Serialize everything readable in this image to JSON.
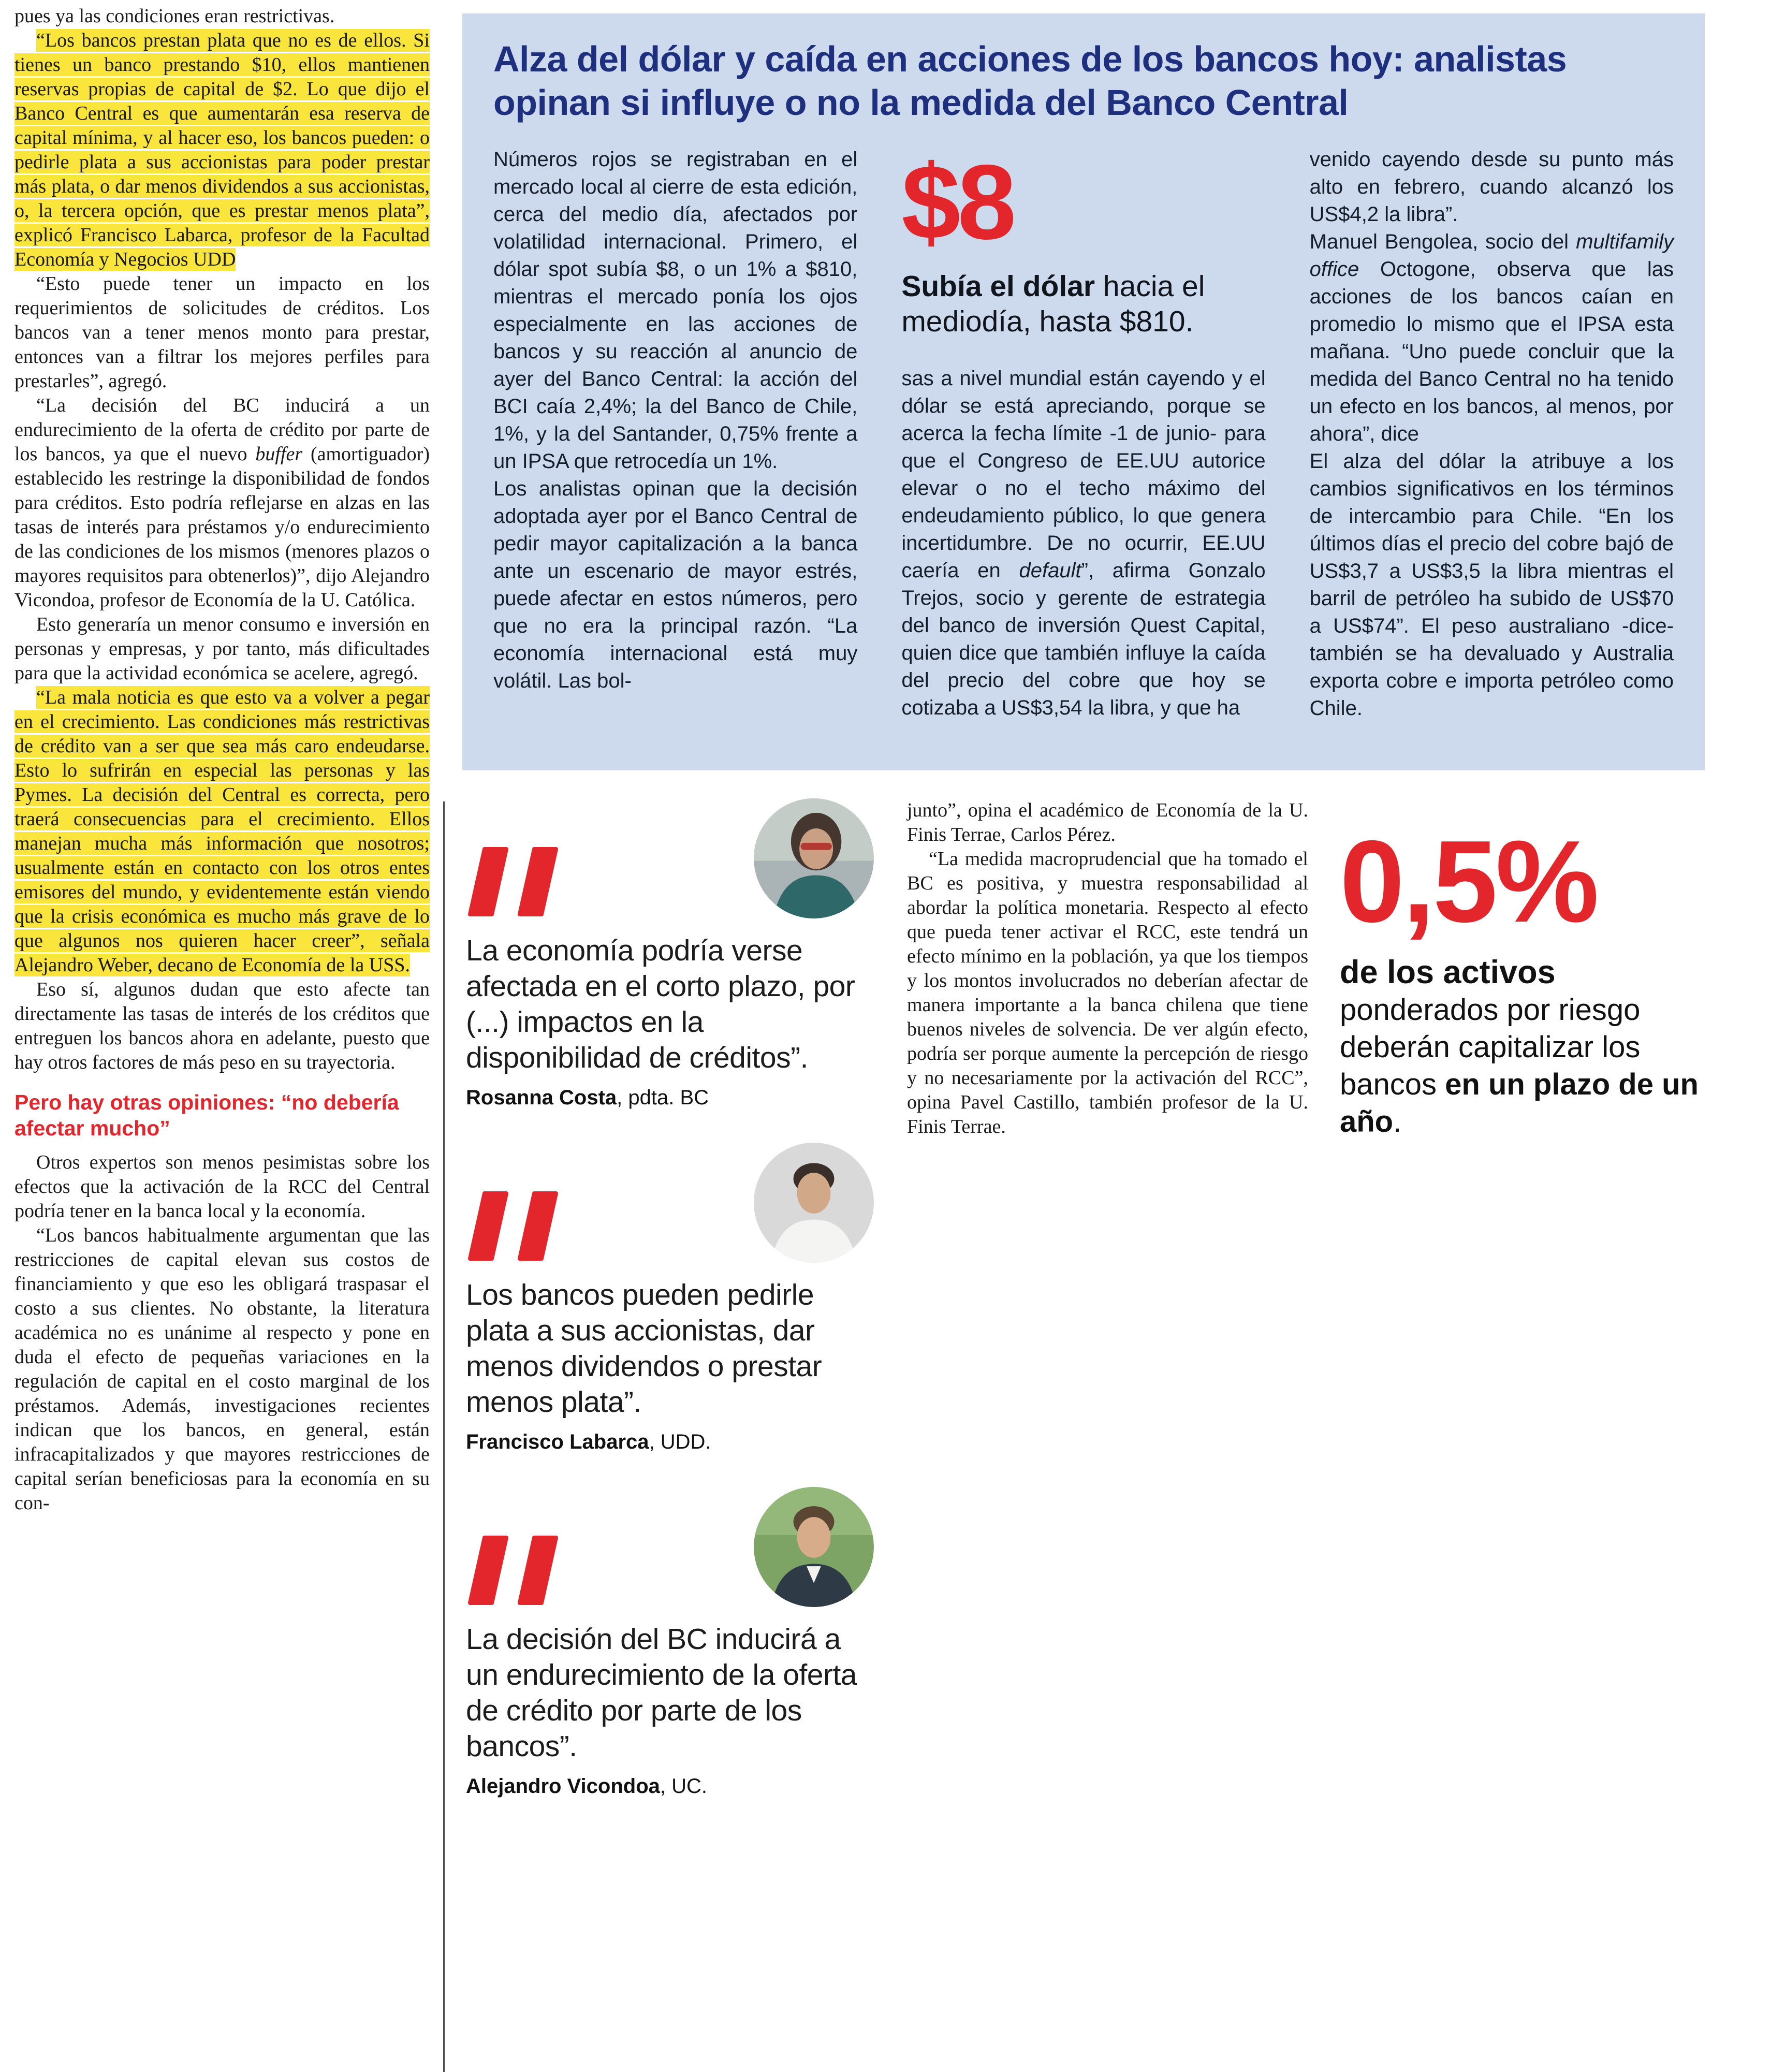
{
  "colors": {
    "accent_red": "#e2262c",
    "headline_navy": "#1e2f7e",
    "panel_blue": "#cdd9ed",
    "highlight_yellow": "#fae53c",
    "text_dark": "#1a1a1a"
  },
  "left_column": {
    "blocks": [
      {
        "seg": [
          {
            "t": "pues ya las condiciones eran restrictivas."
          }
        ]
      },
      {
        "indent": true,
        "seg": [
          {
            "h": true,
            "t": "“Los bancos prestan plata que no es de ellos. Si tienes un banco prestando $10, ellos mantienen reservas propias de capital de $2. Lo que dijo el Banco Central es que aumentarán esa reserva de capital mínima, y al hacer eso, los bancos pueden: o pedirle plata a sus accionistas para poder prestar más plata, o dar menos dividendos a sus accionistas, o, la tercera opción, que es prestar menos plata”, explicó Francisco Labarca, profesor de la Facultad Economía y Negocios UDD"
          }
        ]
      },
      {
        "indent": true,
        "seg": [
          {
            "t": "“Esto puede tener un impacto en los requerimientos de solicitudes de créditos. Los bancos van a tener menos monto para prestar, entonces van a filtrar los mejores perfiles para prestarles”, agregó."
          }
        ]
      },
      {
        "indent": true,
        "seg": [
          {
            "t": "“La decisión del BC inducirá a un endurecimiento de la oferta de crédito por parte de los bancos, ya que el nuevo "
          },
          {
            "i": true,
            "t": "buffer"
          },
          {
            "t": " (amortiguador) establecido les restringe la disponibilidad de fondos para créditos. Esto podría reflejarse en alzas en las tasas de interés para préstamos y/o endurecimiento de las condiciones de los mismos (menores plazos o mayores requisitos para obtenerlos)”, dijo Alejandro Vicondoa, profesor de Economía de la U. Católica."
          }
        ]
      },
      {
        "indent": true,
        "seg": [
          {
            "t": "Esto generaría un menor consumo e inversión en personas y empresas, y por tanto, más dificultades para que la actividad económica se acelere, agregó."
          }
        ]
      },
      {
        "indent": true,
        "seg": [
          {
            "h": true,
            "t": "“La mala noticia es que esto va a volver a pegar en el crecimiento. Las condiciones más restrictivas de crédito van a ser que sea más caro endeudarse. Esto lo sufrirán en especial las personas y las Pymes. La decisión del Central es correcta, pero traerá consecuencias para el crecimiento. Ellos manejan mucha más información que nosotros; usualmente están en contacto con los otros entes emisores del mundo, y evidentemente están viendo que la crisis económica es mucho más grave de lo que algunos nos quieren hacer creer”, señala Alejandro Weber, decano de Economía de la USS."
          }
        ]
      },
      {
        "indent": true,
        "seg": [
          {
            "t": "Eso sí, algunos dudan que esto afecte tan directamente las tasas de interés de los créditos que entreguen los bancos ahora en adelante, puesto que hay otros factores de más peso en su trayectoria."
          }
        ]
      },
      {
        "type": "subhead",
        "text": "Pero hay otras opiniones: “no debería afectar mucho”"
      },
      {
        "indent": true,
        "seg": [
          {
            "t": "Otros expertos son menos pesimistas sobre los efectos que la activación de la RCC del Central podría tener en la banca local y la economía."
          }
        ]
      },
      {
        "indent": true,
        "seg": [
          {
            "t": "“Los bancos habitualmente argumentan que las restricciones de capital elevan sus costos de financiamiento y que eso les obligará traspasar el costo a sus clientes. No obstante, la literatura académica no es unánime al respecto y pone en duda el efecto de pequeñas variaciones en la regulación de capital en el costo marginal de los préstamos. Además, investigaciones recientes indican que los bancos, en general, están infracapitalizados y que mayores restricciones de capital serían beneficiosas para la economía en su con-"
          }
        ]
      }
    ]
  },
  "blue_panel": {
    "title": "Alza del dólar y caída en acciones de los bancos hoy: analistas opinan si influye o no la medida del Banco Central",
    "col1_blocks": [
      {
        "seg": [
          {
            "t": "Números rojos se registraban en el mercado local al cierre de esta edición, cerca del medio día, afectados por volatilidad internacional. Primero, el dólar spot subía $8, o un 1% a $810, mientras el mercado ponía los ojos especialmente en las acciones de bancos y su reacción al anuncio de ayer del Banco Central: la acción del BCI caía 2,4%; la del Banco de Chile, 1%, y la del Santander, 0,75% frente a un IPSA que retrocedía un 1%."
          }
        ]
      },
      {
        "seg": [
          {
            "t": "Los analistas opinan que la decisión adoptada ayer por el Banco Central de pedir mayor capitalización a la banca ante un escenario de mayor estrés, puede afectar en estos números, pero que no era la principal razón. “La economía internacional está muy volátil. Las bol-"
          }
        ]
      }
    ],
    "big_stat": "$8",
    "lead_bold": "Subía el dólar",
    "lead_rest": " hacia el mediodía, hasta $810.",
    "col2_blocks": [
      {
        "seg": [
          {
            "t": "sas a nivel mundial están cayendo y el dólar se está apreciando, porque se acerca la fecha límite -1 de junio- para que el Congreso de EE.UU autorice elevar o no el techo máximo del endeudamiento público, lo que genera incertidumbre. De no ocurrir, EE.UU caería en "
          },
          {
            "i": true,
            "t": "default"
          },
          {
            "t": "”, afirma Gonzalo Trejos, socio y gerente de estrategia del banco de inversión Quest Capital, quien dice que también influye la caída del precio del cobre que hoy se cotizaba a US$3,54 la libra, y que ha"
          }
        ]
      }
    ],
    "col3_blocks": [
      {
        "seg": [
          {
            "t": "venido cayendo desde su punto más alto en febrero, cuando alcanzó los US$4,2 la libra”."
          }
        ]
      },
      {
        "seg": [
          {
            "t": "Manuel Bengolea, socio del "
          },
          {
            "i": true,
            "t": "multifamily office"
          },
          {
            "t": " Octogone, observa que las acciones de los bancos caían en promedio lo mismo que el IPSA esta mañana. “Uno puede concluir que la medida del Banco Central no ha tenido un efecto en los bancos, al menos, por ahora”, dice"
          }
        ]
      },
      {
        "seg": [
          {
            "t": "El alza del dólar la atribuye a los cambios significativos en los términos de intercambio para Chile. “En los últimos días el precio del cobre bajó de US$3,7 a US$3,5 la libra mientras el barril de petróleo ha subido de US$70 a US$74”. El peso australiano -dice- también se ha devaluado y Australia exporta cobre e importa petróleo como Chile."
          }
        ]
      }
    ]
  },
  "quotes": [
    {
      "text": "La economía podría verse afectada en el corto plazo, por (...) impactos en la disponibilidad de créditos”.",
      "name": "Rosanna Costa",
      "role": ", pdta. BC"
    },
    {
      "text": "Los bancos pueden pedirle plata a sus accionistas, dar menos dividendos o prestar menos plata”.",
      "name": "Francisco Labarca",
      "role": ", UDD."
    },
    {
      "text": "La decisión del BC inducirá a un endurecimiento de la oferta de crédito por parte de los bancos”.",
      "name": "Alejandro Vicondoa",
      "role": ", UC."
    }
  ],
  "opinion_column": {
    "blocks": [
      {
        "seg": [
          {
            "t": "junto”, opina el académico de Economía de la U. Finis Terrae, Carlos Pérez."
          }
        ]
      },
      {
        "indent": true,
        "seg": [
          {
            "t": "“La medida macroprudencial que ha tomado el BC es positiva, y muestra responsabilidad al abordar la política monetaria. Respecto al efecto que pueda tener activar el RCC, este tendrá un efecto mínimo en la población, ya que los tiempos y los montos involucrados no deberían afectar de manera importante a la banca chilena que tiene buenos niveles de solvencia. De ver algún efecto, podría ser porque aumente la percepción de riesgo y no necesariamente por la activación del RCC”, opina Pavel Castillo, también profesor de la U. Finis Terrae."
          }
        ]
      }
    ]
  },
  "stat_block": {
    "value": "0,5%",
    "blocks": [
      {
        "seg": [
          {
            "b": true,
            "t": "de los activos"
          }
        ]
      },
      {
        "seg": [
          {
            "t": "ponderados por riesgo deberán capitalizar los bancos "
          },
          {
            "b": true,
            "t": "en un plazo de un año"
          },
          {
            "t": "."
          }
        ]
      }
    ]
  }
}
